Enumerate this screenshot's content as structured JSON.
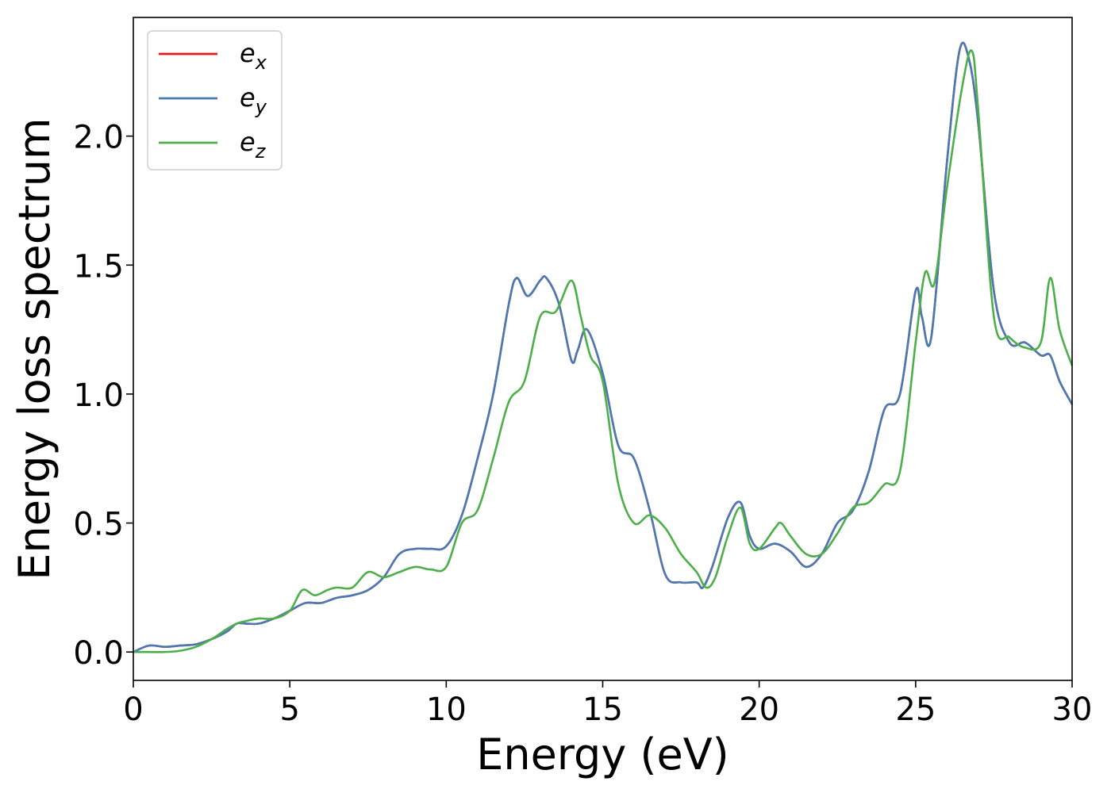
{
  "chart_data": {
    "type": "line",
    "title": "",
    "xlabel": "Energy (eV)",
    "ylabel": "Energy loss spectrum",
    "xlim": [
      0,
      30
    ],
    "ylim": [
      -0.11,
      2.46
    ],
    "xticks": [
      0,
      5,
      10,
      15,
      20,
      25,
      30
    ],
    "yticks": [
      0.0,
      0.5,
      1.0,
      1.5,
      2.0
    ],
    "ytick_labels": [
      "0.0",
      "0.5",
      "1.0",
      "1.5",
      "2.0"
    ],
    "grid": false,
    "legend_position": "top-left",
    "series": [
      {
        "name": "e_x",
        "legend_base": "e",
        "legend_sub": "x",
        "color": "#e41a1c",
        "x": [
          0,
          0.5,
          1,
          1.5,
          2,
          2.5,
          3,
          3.3,
          3.6,
          4,
          4.5,
          5,
          5.5,
          6,
          6.5,
          7,
          7.5,
          8,
          8.5,
          9,
          9.5,
          10,
          10.5,
          11,
          11.5,
          12,
          12.25,
          12.6,
          13,
          13.2,
          13.6,
          14,
          14.2,
          14.5,
          15,
          15.5,
          16,
          16.5,
          17,
          17.5,
          18,
          18.2,
          18.5,
          19,
          19.4,
          19.7,
          20,
          20.5,
          21,
          21.5,
          22,
          22.5,
          23,
          23.5,
          24,
          24.5,
          25,
          25.2,
          25.5,
          26,
          26.4,
          26.7,
          27,
          27.5,
          28,
          28.5,
          29,
          29.3,
          29.6,
          30
        ],
        "y": [
          0.0,
          0.025,
          0.02,
          0.025,
          0.03,
          0.05,
          0.08,
          0.11,
          0.11,
          0.11,
          0.13,
          0.16,
          0.19,
          0.19,
          0.21,
          0.22,
          0.24,
          0.29,
          0.38,
          0.4,
          0.4,
          0.41,
          0.53,
          0.75,
          1.0,
          1.35,
          1.45,
          1.38,
          1.44,
          1.45,
          1.35,
          1.13,
          1.17,
          1.25,
          1.08,
          0.8,
          0.75,
          0.55,
          0.3,
          0.27,
          0.27,
          0.25,
          0.33,
          0.52,
          0.58,
          0.45,
          0.4,
          0.42,
          0.39,
          0.33,
          0.38,
          0.5,
          0.55,
          0.7,
          0.94,
          1.0,
          1.4,
          1.3,
          1.22,
          1.9,
          2.33,
          2.3,
          2.05,
          1.4,
          1.2,
          1.2,
          1.15,
          1.15,
          1.05,
          0.96
        ]
      },
      {
        "name": "e_y",
        "legend_base": "e",
        "legend_sub": "y",
        "color": "#4a7ab4",
        "x": [
          0,
          0.5,
          1,
          1.5,
          2,
          2.5,
          3,
          3.3,
          3.6,
          4,
          4.5,
          5,
          5.5,
          6,
          6.5,
          7,
          7.5,
          8,
          8.5,
          9,
          9.5,
          10,
          10.5,
          11,
          11.5,
          12,
          12.25,
          12.6,
          13,
          13.2,
          13.6,
          14,
          14.2,
          14.5,
          15,
          15.5,
          16,
          16.5,
          17,
          17.5,
          18,
          18.2,
          18.5,
          19,
          19.4,
          19.7,
          20,
          20.5,
          21,
          21.5,
          22,
          22.5,
          23,
          23.5,
          24,
          24.5,
          25,
          25.2,
          25.5,
          26,
          26.4,
          26.7,
          27,
          27.5,
          28,
          28.5,
          29,
          29.3,
          29.6,
          30
        ],
        "y": [
          0.0,
          0.025,
          0.02,
          0.025,
          0.03,
          0.05,
          0.08,
          0.11,
          0.11,
          0.11,
          0.13,
          0.16,
          0.19,
          0.19,
          0.21,
          0.22,
          0.24,
          0.29,
          0.38,
          0.4,
          0.4,
          0.41,
          0.53,
          0.75,
          1.0,
          1.35,
          1.45,
          1.38,
          1.44,
          1.45,
          1.35,
          1.13,
          1.17,
          1.25,
          1.08,
          0.8,
          0.75,
          0.55,
          0.3,
          0.27,
          0.27,
          0.25,
          0.33,
          0.52,
          0.58,
          0.45,
          0.4,
          0.42,
          0.39,
          0.33,
          0.38,
          0.5,
          0.55,
          0.7,
          0.94,
          1.0,
          1.4,
          1.3,
          1.22,
          1.9,
          2.33,
          2.3,
          2.05,
          1.4,
          1.2,
          1.2,
          1.15,
          1.15,
          1.05,
          0.96
        ]
      },
      {
        "name": "e_z",
        "legend_base": "e",
        "legend_sub": "z",
        "color": "#4daf4a",
        "x": [
          0,
          0.5,
          1,
          1.5,
          2,
          2.5,
          3,
          3.3,
          3.6,
          4,
          4.5,
          5,
          5.4,
          5.8,
          6.2,
          6.5,
          7,
          7.5,
          8,
          8.5,
          9,
          9.5,
          10,
          10.5,
          11,
          11.5,
          12,
          12.5,
          13,
          13.5,
          14,
          14.3,
          14.6,
          15,
          15.5,
          16,
          16.5,
          17,
          17.5,
          18,
          18.3,
          18.6,
          19,
          19.4,
          19.7,
          20,
          20.5,
          20.7,
          21,
          21.5,
          22,
          22.5,
          23,
          23.5,
          24,
          24.5,
          25,
          25.3,
          25.6,
          26,
          26.5,
          26.8,
          27,
          27.5,
          28,
          28.5,
          29,
          29.3,
          29.6,
          30
        ],
        "y": [
          0.0,
          0.0,
          0.0,
          0.005,
          0.02,
          0.05,
          0.09,
          0.11,
          0.12,
          0.13,
          0.13,
          0.16,
          0.24,
          0.22,
          0.24,
          0.25,
          0.25,
          0.31,
          0.29,
          0.31,
          0.33,
          0.32,
          0.33,
          0.5,
          0.55,
          0.75,
          0.97,
          1.05,
          1.3,
          1.32,
          1.44,
          1.3,
          1.15,
          1.05,
          0.65,
          0.5,
          0.53,
          0.48,
          0.38,
          0.31,
          0.25,
          0.29,
          0.45,
          0.56,
          0.42,
          0.4,
          0.48,
          0.5,
          0.45,
          0.38,
          0.38,
          0.46,
          0.56,
          0.58,
          0.65,
          0.7,
          1.2,
          1.47,
          1.43,
          1.8,
          2.2,
          2.33,
          2.1,
          1.3,
          1.22,
          1.18,
          1.2,
          1.45,
          1.25,
          1.11
        ]
      }
    ]
  }
}
